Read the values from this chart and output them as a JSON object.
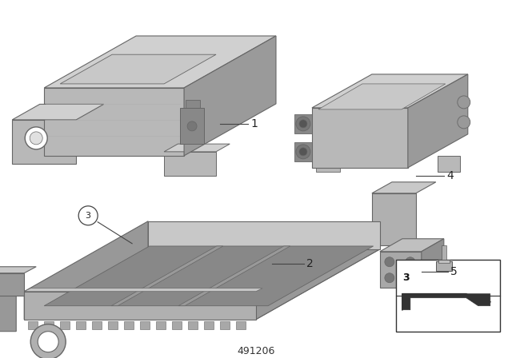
{
  "background_color": "#ffffff",
  "diagram_number": "491206",
  "label_fontsize": 10,
  "component_face": "#c0c0c0",
  "component_top": "#d8d8d8",
  "component_side": "#a0a0a0",
  "component_dark": "#888888",
  "edge_color": "#666666",
  "label_color": "#222222",
  "line_color": "#444444"
}
